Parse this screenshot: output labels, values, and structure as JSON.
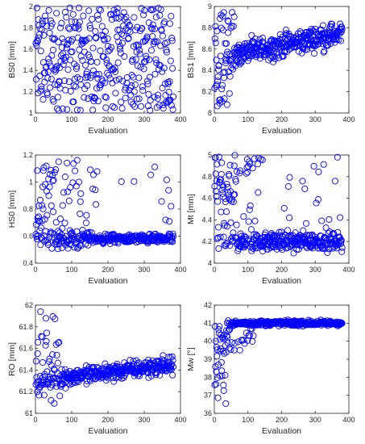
{
  "marker_color": "#0000ff",
  "chart_data": [
    {
      "type": "scatter",
      "xlabel": "Evaluation",
      "ylabel": "BS0 [mm]",
      "xlim": [
        0,
        400
      ],
      "ylim": [
        1,
        2
      ],
      "xticks": [
        0,
        100,
        200,
        300,
        400
      ],
      "yticks": [
        1,
        1.2,
        1.4,
        1.6,
        1.8,
        2
      ],
      "x": [],
      "y": []
    },
    {
      "type": "scatter",
      "xlabel": "Evaluation",
      "ylabel": "BS1 [mm]",
      "xlim": [
        0,
        400
      ],
      "ylim": [
        8,
        9
      ],
      "xticks": [
        0,
        100,
        200,
        300,
        400
      ],
      "yticks": [
        8,
        8.2,
        8.4,
        8.6,
        8.8,
        9
      ],
      "x": [],
      "y": []
    },
    {
      "type": "scatter",
      "xlabel": "Evaluation",
      "ylabel": "HS0 [mm]",
      "xlim": [
        0,
        400
      ],
      "ylim": [
        0.4,
        1.2
      ],
      "xticks": [
        0,
        100,
        200,
        300,
        400
      ],
      "yticks": [
        0.4,
        0.6,
        0.8,
        1,
        1.2
      ],
      "x": [],
      "y": []
    },
    {
      "type": "scatter",
      "xlabel": "Evaluation",
      "ylabel": "Mt [mm]",
      "xlim": [
        0,
        400
      ],
      "ylim": [
        4,
        5
      ],
      "xticks": [
        0,
        100,
        200,
        300,
        400
      ],
      "yticks": [
        4,
        4.2,
        4.4,
        4.6,
        4.8,
        5
      ],
      "x": [],
      "y": []
    },
    {
      "type": "scatter",
      "xlabel": "Evaluation",
      "ylabel": "RO [mm]",
      "xlim": [
        0,
        400
      ],
      "ylim": [
        61,
        62
      ],
      "xticks": [
        0,
        100,
        200,
        300,
        400
      ],
      "yticks": [
        61,
        61.2,
        61.4,
        61.6,
        61.8,
        62
      ],
      "x": [],
      "y": []
    },
    {
      "type": "scatter",
      "xlabel": "Evaluation",
      "ylabel": "Mw [°]",
      "xlim": [
        0,
        400
      ],
      "ylim": [
        36,
        42
      ],
      "xticks": [
        0,
        100,
        200,
        300,
        400
      ],
      "yticks": [
        36,
        37,
        38,
        39,
        40,
        41,
        42
      ],
      "x": [],
      "y": []
    }
  ]
}
